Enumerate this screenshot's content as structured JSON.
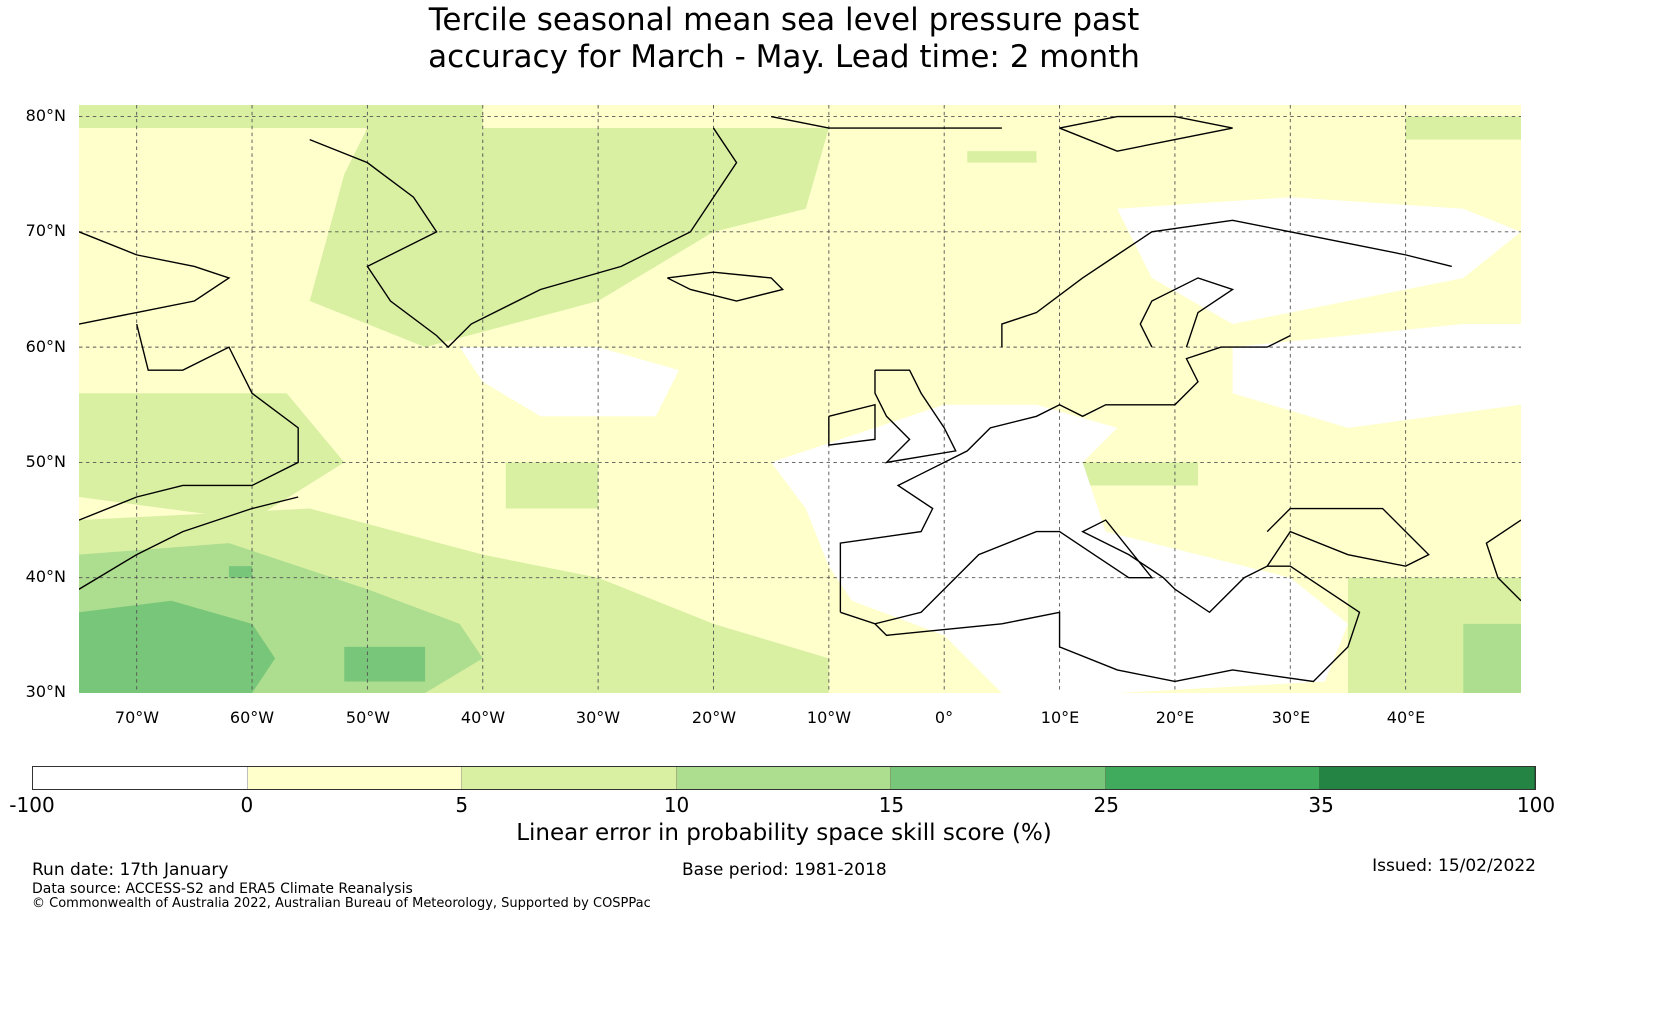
{
  "chart_data": {
    "type": "heatmap",
    "title": "Tercile seasonal mean sea level pressure past accuracy for March - May. Lead time: 2 month",
    "title_lines": [
      "Tercile seasonal mean sea level pressure past",
      "accuracy for March - May. Lead time: 2 month"
    ],
    "lon_range": [
      -75,
      50
    ],
    "lat_range": [
      30,
      81
    ],
    "lat_ticks": [
      "80°N",
      "70°N",
      "60°N",
      "50°N",
      "40°N",
      "30°N"
    ],
    "lat_tick_values": [
      80,
      70,
      60,
      50,
      40,
      30
    ],
    "lon_ticks": [
      "70°W",
      "60°W",
      "50°W",
      "40°W",
      "30°W",
      "20°W",
      "10°W",
      "0°",
      "10°E",
      "20°E",
      "30°E",
      "40°E"
    ],
    "lon_tick_values": [
      -70,
      -60,
      -50,
      -40,
      -30,
      -20,
      -10,
      0,
      10,
      20,
      30,
      40
    ],
    "colorbar": {
      "label": "Linear error in probability space skill score (%)",
      "bounds": [
        "-100",
        "0",
        "5",
        "10",
        "15",
        "25",
        "35",
        "100"
      ],
      "colors": [
        "#ffffff",
        "#ffffcc",
        "#d9f0a3",
        "#addd8e",
        "#78c679",
        "#41ab5d",
        "#238443"
      ]
    }
  },
  "footer": {
    "run_date": "Run date: 17th January",
    "base_period": "Base period: 1981-2018",
    "issued": "Issued: 15/02/2022",
    "data_source": "Data source: ACCESS-S2 and ERA5 Climate Reanalysis",
    "copyright": "© Commonwealth of Australia 2022, Australian Bureau of Meteorology, Supported by COSPPac"
  }
}
